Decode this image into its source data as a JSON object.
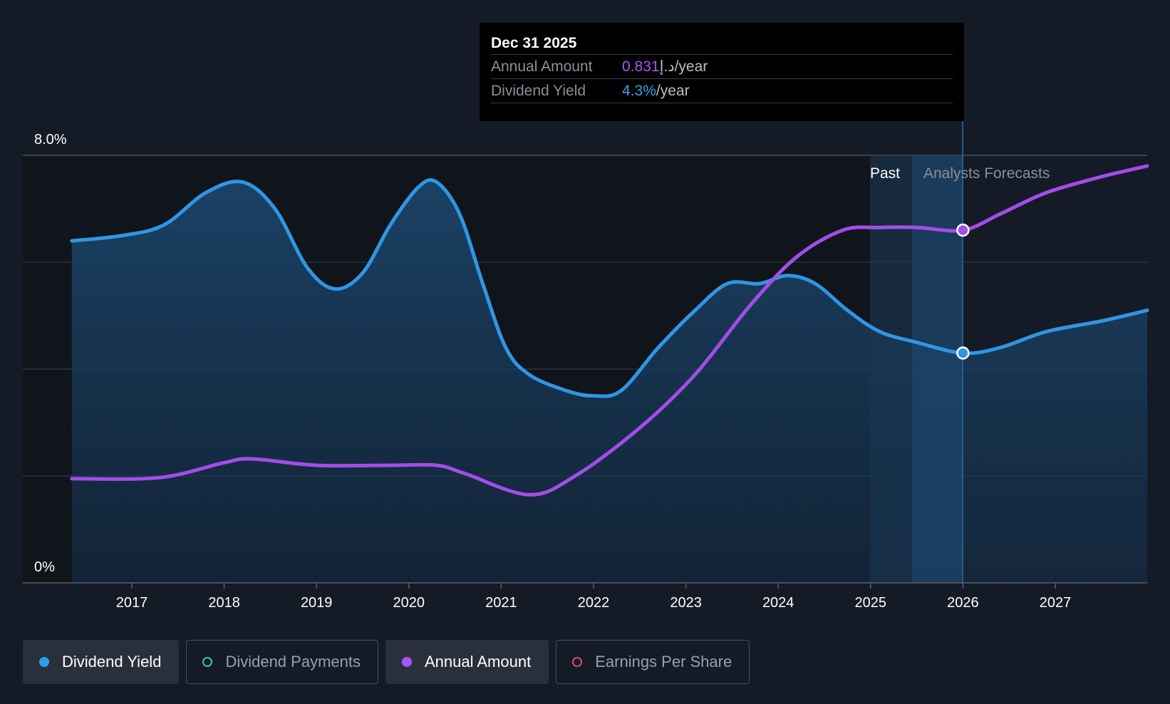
{
  "tooltip": {
    "date": "Dec 31 2025",
    "rows": [
      {
        "label": "Annual Amount",
        "value": "0.831",
        "unit": "د.إ/year",
        "color": "#a855f7"
      },
      {
        "label": "Dividend Yield",
        "value": "4.3%",
        "unit": "/year",
        "color": "#3ba0f0"
      }
    ]
  },
  "chart_data": {
    "type": "line",
    "ylim": [
      0,
      8.0
    ],
    "y_tick_labels": [
      "8.0%",
      "0%"
    ],
    "xlim": [
      2016.0,
      2028.0
    ],
    "x_ticks": [
      2017,
      2018,
      2019,
      2020,
      2021,
      2022,
      2023,
      2024,
      2025,
      2026,
      2027
    ],
    "region_labels": {
      "past": "Past",
      "forecast": "Analysts Forecasts"
    },
    "series": [
      {
        "name": "Dividend Yield",
        "color": "#2f96e4",
        "area": true,
        "x": [
          2016.35,
          2016.9,
          2017.35,
          2017.8,
          2018.2,
          2018.55,
          2018.9,
          2019.2,
          2019.5,
          2019.8,
          2020.1,
          2020.3,
          2020.55,
          2020.8,
          2021.05,
          2021.3,
          2021.7,
          2022.0,
          2022.3,
          2022.7,
          2023.1,
          2023.45,
          2023.8,
          2024.1,
          2024.4,
          2024.75,
          2025.1,
          2025.5,
          2026.0,
          2026.4,
          2026.9,
          2027.5,
          2028.0
        ],
        "y": [
          6.4,
          6.5,
          6.7,
          7.3,
          7.5,
          7.0,
          5.9,
          5.5,
          5.8,
          6.7,
          7.4,
          7.5,
          6.9,
          5.6,
          4.4,
          3.9,
          3.6,
          3.5,
          3.6,
          4.4,
          5.1,
          5.6,
          5.6,
          5.75,
          5.6,
          5.1,
          4.7,
          4.5,
          4.3,
          4.4,
          4.7,
          4.9,
          5.1
        ]
      },
      {
        "name": "Annual Amount",
        "color": "#a24de8",
        "area": false,
        "x": [
          2016.35,
          2017.3,
          2018.0,
          2018.3,
          2019.0,
          2019.8,
          2020.3,
          2020.6,
          2021.3,
          2021.8,
          2022.5,
          2023.1,
          2023.7,
          2024.2,
          2024.7,
          2025.1,
          2025.5,
          2026.0,
          2026.4,
          2026.9,
          2027.5,
          2028.0
        ],
        "y": [
          1.95,
          1.97,
          2.25,
          2.32,
          2.2,
          2.2,
          2.2,
          2.05,
          1.65,
          2.0,
          2.9,
          3.9,
          5.2,
          6.1,
          6.6,
          6.65,
          6.65,
          6.6,
          6.9,
          7.3,
          7.6,
          7.8
        ]
      }
    ],
    "highlight": {
      "x": 2026.0,
      "yield": 4.3,
      "amount": 6.6
    }
  },
  "legend": [
    {
      "label": "Dividend Yield",
      "color": "#2d9cf0",
      "filled": true,
      "active": true
    },
    {
      "label": "Dividend Payments",
      "color": "#36c5b6",
      "filled": false,
      "active": false
    },
    {
      "label": "Annual Amount",
      "color": "#a855f7",
      "filled": true,
      "active": true
    },
    {
      "label": "Earnings Per Share",
      "color": "#d6497e",
      "filled": false,
      "active": false
    }
  ]
}
